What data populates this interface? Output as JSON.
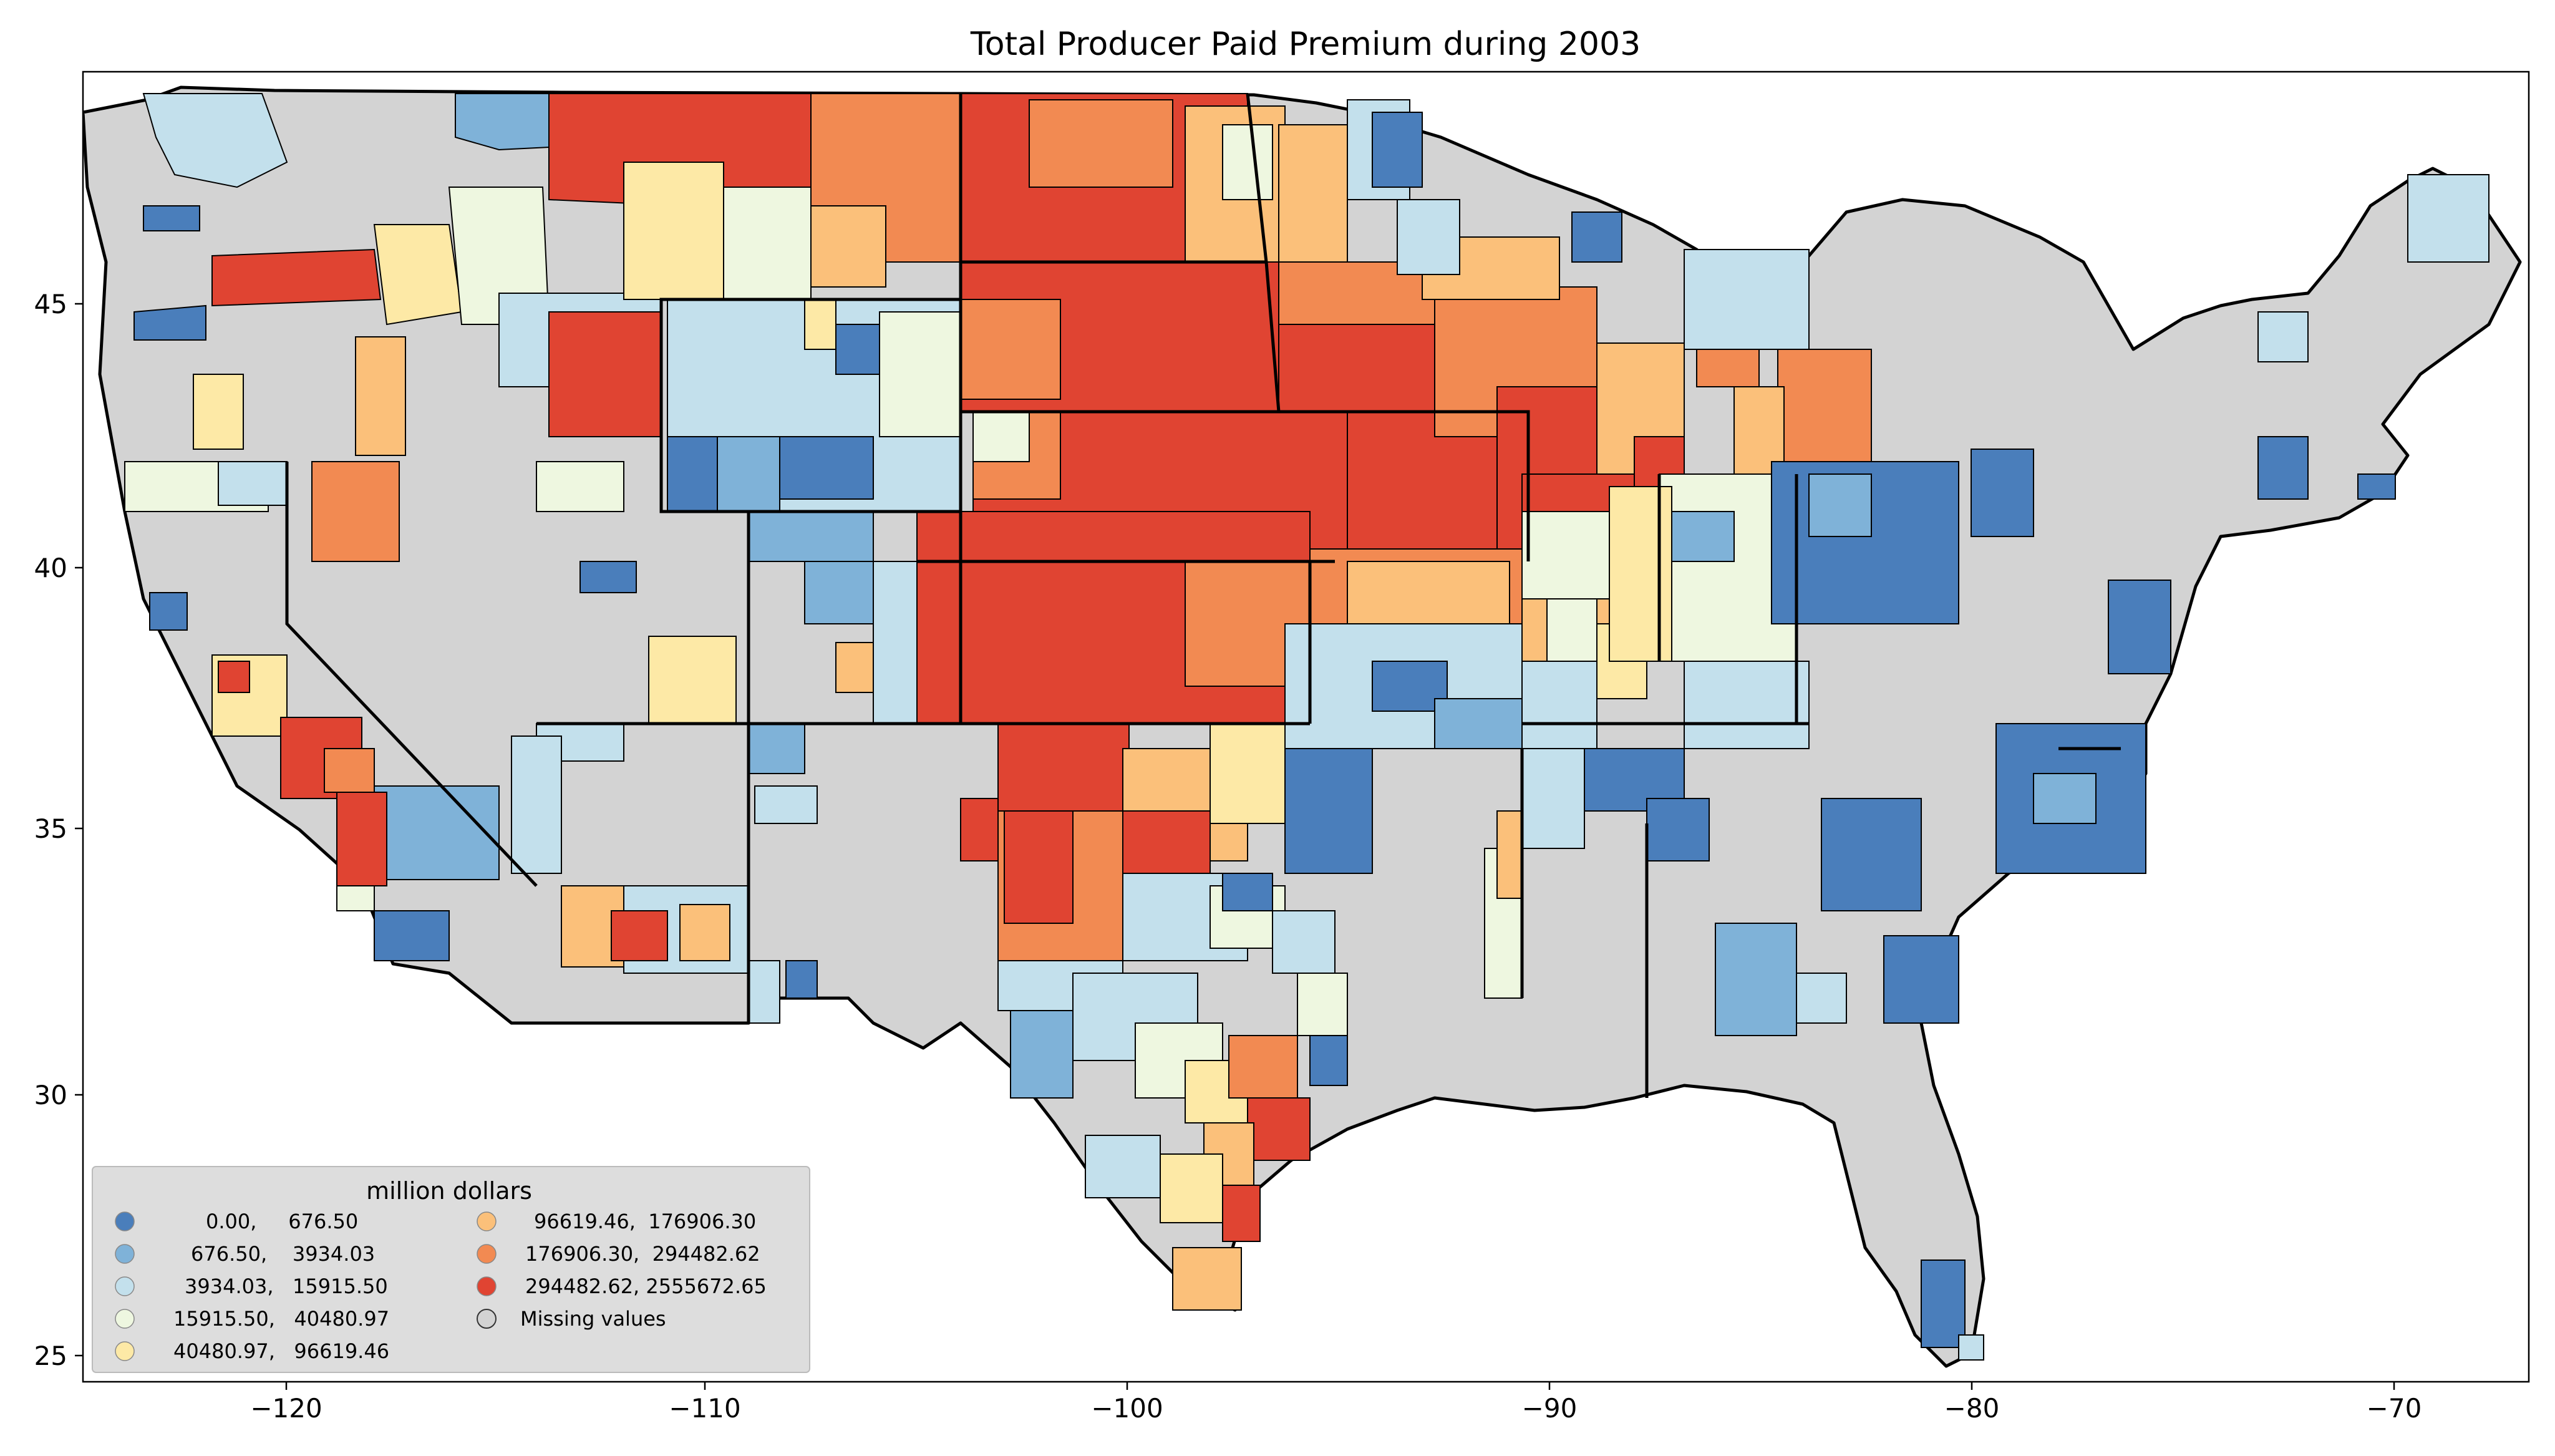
{
  "title": "Total Producer Paid Premium during 2003",
  "axes": {
    "x_ticks": [
      "−120",
      "−110",
      "−100",
      "−90",
      "−80",
      "−70"
    ],
    "y_ticks": [
      "25",
      "30",
      "35",
      "40",
      "45"
    ]
  },
  "legend": {
    "title": "million dollars",
    "items": [
      {
        "label": "0.00,     676.50",
        "color": "#4a7ebb"
      },
      {
        "label": "676.50,    3934.03",
        "color": "#7fb2d8"
      },
      {
        "label": "3934.03,   15915.50",
        "color": "#c3e0ec"
      },
      {
        "label": "15915.50,   40480.97",
        "color": "#eef7e0"
      },
      {
        "label": "40480.97,   96619.46",
        "color": "#fde9a6"
      },
      {
        "label": "96619.46,  176906.30",
        "color": "#fbc07a"
      },
      {
        "label": "176906.30,  294482.62",
        "color": "#f28a52"
      },
      {
        "label": "294482.62, 2555672.65",
        "color": "#e04432"
      },
      {
        "label": "Missing values",
        "color": "#d3d3d3"
      }
    ]
  }
}
